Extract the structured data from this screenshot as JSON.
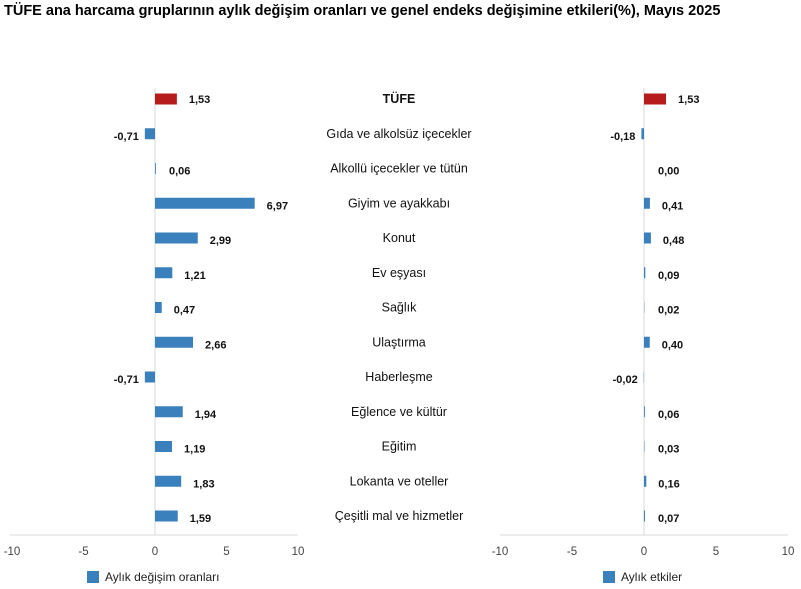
{
  "title": "TÜFE ana harcama gruplarının aylık değişim oranları ve genel endeks değişimine etkileri(%), Mayıs 2025",
  "colors": {
    "primary": "#3a80bd",
    "highlight": "#b71c1c"
  },
  "chart_data": [
    {
      "type": "bar",
      "orientation": "horizontal",
      "categories": [
        "TÜFE",
        "Gıda ve alkolsüz içecekler",
        "Alkollü içecekler ve tütün",
        "Giyim ve ayakkabı",
        "Konut",
        "Ev eşyası",
        "Sağlık",
        "Ulaştırma",
        "Haberleşme",
        "Eğlence ve kültür",
        "Eğitim",
        "Lokanta ve oteller",
        "Çeşitli mal ve hizmetler"
      ],
      "series": [
        {
          "name": "Aylık değişim oranları",
          "values": [
            1.53,
            -0.71,
            0.06,
            6.97,
            2.99,
            1.21,
            0.47,
            2.66,
            -0.71,
            1.94,
            1.19,
            1.83,
            1.59
          ],
          "labels": [
            "1,53",
            "-0,71",
            "0,06",
            "6,97",
            "2,99",
            "1,21",
            "0,47",
            "2,66",
            "-0,71",
            "1,94",
            "1,19",
            "1,83",
            "1,59"
          ]
        }
      ],
      "highlight_index": 0,
      "xlim": [
        -10,
        10
      ],
      "xticks": [
        "-10",
        "-5",
        "0",
        "5",
        "10"
      ],
      "legend": "bottom-left"
    },
    {
      "type": "bar",
      "orientation": "horizontal",
      "categories": [
        "TÜFE",
        "Gıda ve alkolsüz içecekler",
        "Alkollü içecekler ve tütün",
        "Giyim ve ayakkabı",
        "Konut",
        "Ev eşyası",
        "Sağlık",
        "Ulaştırma",
        "Haberleşme",
        "Eğlence ve kültür",
        "Eğitim",
        "Lokanta ve oteller",
        "Çeşitli mal ve hizmetler"
      ],
      "series": [
        {
          "name": "Aylık etkiler",
          "values": [
            1.53,
            -0.18,
            0.0,
            0.41,
            0.48,
            0.09,
            0.02,
            0.4,
            -0.02,
            0.06,
            0.03,
            0.16,
            0.07
          ],
          "labels": [
            "1,53",
            "-0,18",
            "0,00",
            "0,41",
            "0,48",
            "0,09",
            "0,02",
            "0,40",
            "-0,02",
            "0,06",
            "0,03",
            "0,16",
            "0,07"
          ]
        }
      ],
      "highlight_index": 0,
      "xlim": [
        -10,
        10
      ],
      "xticks": [
        "-10",
        "-5",
        "0",
        "5",
        "10"
      ],
      "legend": "bottom-left"
    }
  ]
}
